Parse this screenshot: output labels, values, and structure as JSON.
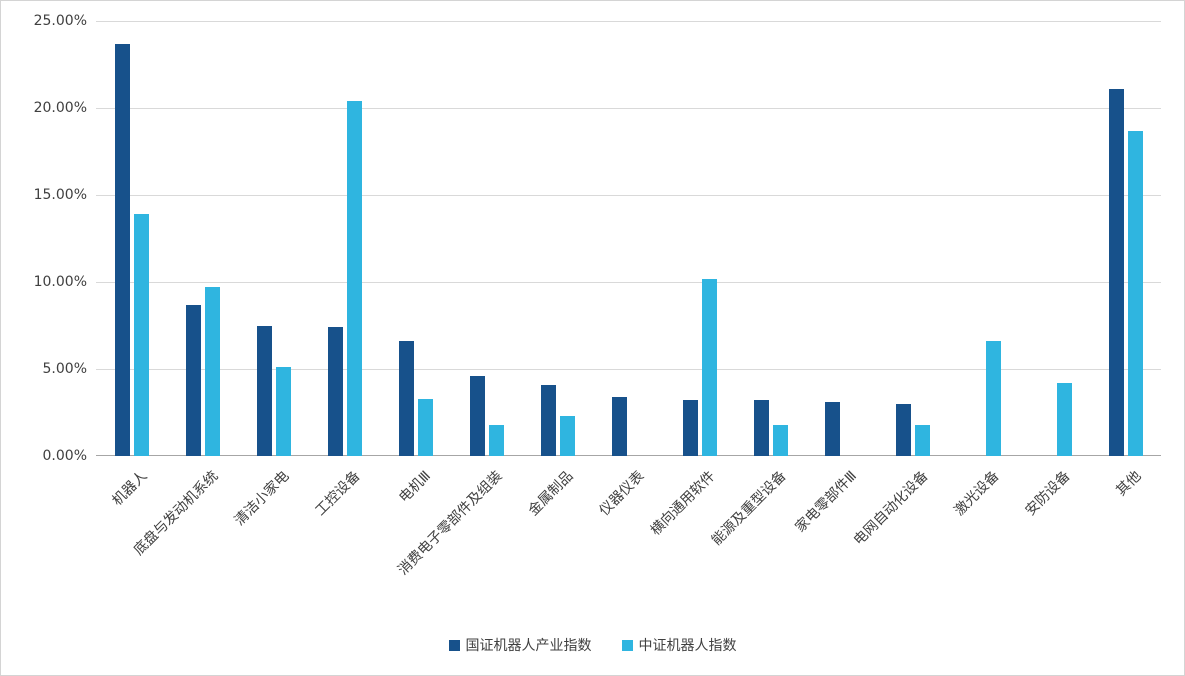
{
  "chart_data": {
    "type": "bar",
    "title": "",
    "xlabel": "",
    "ylabel": "",
    "ylim": [
      0,
      25
    ],
    "ytick_step": 5,
    "ytick_labels": [
      "0.00%",
      "5.00%",
      "10.00%",
      "15.00%",
      "20.00%",
      "25.00%"
    ],
    "grid": true,
    "legend_position": "bottom",
    "categories": [
      "机器人",
      "底盘与发动机系统",
      "清洁小家电",
      "工控设备",
      "电机Ⅲ",
      "消费电子零部件及组装",
      "金属制品",
      "仪器仪表",
      "横向通用软件",
      "能源及重型设备",
      "家电零部件Ⅲ",
      "电网自动化设备",
      "激光设备",
      "安防设备",
      "其他"
    ],
    "series": [
      {
        "name": "国证机器人产业指数",
        "color": "#17518B",
        "values": [
          23.7,
          8.7,
          7.5,
          7.4,
          6.6,
          4.6,
          4.1,
          3.4,
          3.2,
          3.2,
          3.1,
          3.0,
          0,
          0,
          21.1
        ]
      },
      {
        "name": "中证机器人指数",
        "color": "#2FB5E0",
        "values": [
          13.9,
          9.7,
          5.1,
          20.4,
          3.3,
          1.8,
          2.3,
          0,
          10.2,
          1.8,
          0,
          1.8,
          6.6,
          4.2,
          18.7
        ]
      }
    ]
  },
  "colors": {
    "gridline": "#d9d9d9",
    "axis_line": "#a6a6a6",
    "text": "#404040",
    "background": "#ffffff"
  }
}
